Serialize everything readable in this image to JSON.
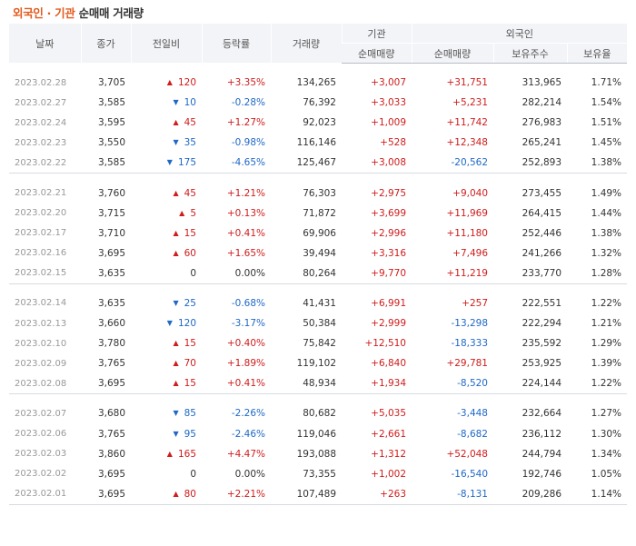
{
  "title": {
    "highlight": "외국인 · 기관",
    "rest": "순매매 거래량"
  },
  "headers": {
    "date": "날짜",
    "close": "종가",
    "change": "전일비",
    "rate": "등락률",
    "volume": "거래량",
    "inst_group": "기관",
    "foreign_group": "외국인",
    "inst_net": "순매매량",
    "foreign_net": "순매매량",
    "holdings": "보유주수",
    "holding_ratio": "보유율"
  },
  "colors": {
    "up": "#d01c1c",
    "down": "#1f68c7",
    "accent": "#e25a1c"
  },
  "groups": [
    [
      {
        "date": "2023.02.28",
        "close": "3,705",
        "dir": "up",
        "change": "120",
        "rate": "+3.35%",
        "volume": "134,265",
        "inst": "+3,007",
        "foreign": "+31,751",
        "holdings": "313,965",
        "ratio": "1.71%"
      },
      {
        "date": "2023.02.27",
        "close": "3,585",
        "dir": "down",
        "change": "10",
        "rate": "-0.28%",
        "volume": "76,392",
        "inst": "+3,033",
        "foreign": "+5,231",
        "holdings": "282,214",
        "ratio": "1.54%"
      },
      {
        "date": "2023.02.24",
        "close": "3,595",
        "dir": "up",
        "change": "45",
        "rate": "+1.27%",
        "volume": "92,023",
        "inst": "+1,009",
        "foreign": "+11,742",
        "holdings": "276,983",
        "ratio": "1.51%"
      },
      {
        "date": "2023.02.23",
        "close": "3,550",
        "dir": "down",
        "change": "35",
        "rate": "-0.98%",
        "volume": "116,146",
        "inst": "+528",
        "foreign": "+12,348",
        "holdings": "265,241",
        "ratio": "1.45%"
      },
      {
        "date": "2023.02.22",
        "close": "3,585",
        "dir": "down",
        "change": "175",
        "rate": "-4.65%",
        "volume": "125,467",
        "inst": "+3,008",
        "foreign": "-20,562",
        "holdings": "252,893",
        "ratio": "1.38%"
      }
    ],
    [
      {
        "date": "2023.02.21",
        "close": "3,760",
        "dir": "up",
        "change": "45",
        "rate": "+1.21%",
        "volume": "76,303",
        "inst": "+2,975",
        "foreign": "+9,040",
        "holdings": "273,455",
        "ratio": "1.49%"
      },
      {
        "date": "2023.02.20",
        "close": "3,715",
        "dir": "up",
        "change": "5",
        "rate": "+0.13%",
        "volume": "71,872",
        "inst": "+3,699",
        "foreign": "+11,969",
        "holdings": "264,415",
        "ratio": "1.44%"
      },
      {
        "date": "2023.02.17",
        "close": "3,710",
        "dir": "up",
        "change": "15",
        "rate": "+0.41%",
        "volume": "69,906",
        "inst": "+2,996",
        "foreign": "+11,180",
        "holdings": "252,446",
        "ratio": "1.38%"
      },
      {
        "date": "2023.02.16",
        "close": "3,695",
        "dir": "up",
        "change": "60",
        "rate": "+1.65%",
        "volume": "39,494",
        "inst": "+3,316",
        "foreign": "+7,496",
        "holdings": "241,266",
        "ratio": "1.32%"
      },
      {
        "date": "2023.02.15",
        "close": "3,635",
        "dir": "flat",
        "change": "0",
        "rate": "0.00%",
        "volume": "80,264",
        "inst": "+9,770",
        "foreign": "+11,219",
        "holdings": "233,770",
        "ratio": "1.28%"
      }
    ],
    [
      {
        "date": "2023.02.14",
        "close": "3,635",
        "dir": "down",
        "change": "25",
        "rate": "-0.68%",
        "volume": "41,431",
        "inst": "+6,991",
        "foreign": "+257",
        "holdings": "222,551",
        "ratio": "1.22%"
      },
      {
        "date": "2023.02.13",
        "close": "3,660",
        "dir": "down",
        "change": "120",
        "rate": "-3.17%",
        "volume": "50,384",
        "inst": "+2,999",
        "foreign": "-13,298",
        "holdings": "222,294",
        "ratio": "1.21%"
      },
      {
        "date": "2023.02.10",
        "close": "3,780",
        "dir": "up",
        "change": "15",
        "rate": "+0.40%",
        "volume": "75,842",
        "inst": "+12,510",
        "foreign": "-18,333",
        "holdings": "235,592",
        "ratio": "1.29%"
      },
      {
        "date": "2023.02.09",
        "close": "3,765",
        "dir": "up",
        "change": "70",
        "rate": "+1.89%",
        "volume": "119,102",
        "inst": "+6,840",
        "foreign": "+29,781",
        "holdings": "253,925",
        "ratio": "1.39%"
      },
      {
        "date": "2023.02.08",
        "close": "3,695",
        "dir": "up",
        "change": "15",
        "rate": "+0.41%",
        "volume": "48,934",
        "inst": "+1,934",
        "foreign": "-8,520",
        "holdings": "224,144",
        "ratio": "1.22%"
      }
    ],
    [
      {
        "date": "2023.02.07",
        "close": "3,680",
        "dir": "down",
        "change": "85",
        "rate": "-2.26%",
        "volume": "80,682",
        "inst": "+5,035",
        "foreign": "-3,448",
        "holdings": "232,664",
        "ratio": "1.27%"
      },
      {
        "date": "2023.02.06",
        "close": "3,765",
        "dir": "down",
        "change": "95",
        "rate": "-2.46%",
        "volume": "119,046",
        "inst": "+2,661",
        "foreign": "-8,682",
        "holdings": "236,112",
        "ratio": "1.30%"
      },
      {
        "date": "2023.02.03",
        "close": "3,860",
        "dir": "up",
        "change": "165",
        "rate": "+4.47%",
        "volume": "193,088",
        "inst": "+1,312",
        "foreign": "+52,048",
        "holdings": "244,794",
        "ratio": "1.34%"
      },
      {
        "date": "2023.02.02",
        "close": "3,695",
        "dir": "flat",
        "change": "0",
        "rate": "0.00%",
        "volume": "73,355",
        "inst": "+1,002",
        "foreign": "-16,540",
        "holdings": "192,746",
        "ratio": "1.05%"
      },
      {
        "date": "2023.02.01",
        "close": "3,695",
        "dir": "up",
        "change": "80",
        "rate": "+2.21%",
        "volume": "107,489",
        "inst": "+263",
        "foreign": "-8,131",
        "holdings": "209,286",
        "ratio": "1.14%"
      }
    ]
  ]
}
